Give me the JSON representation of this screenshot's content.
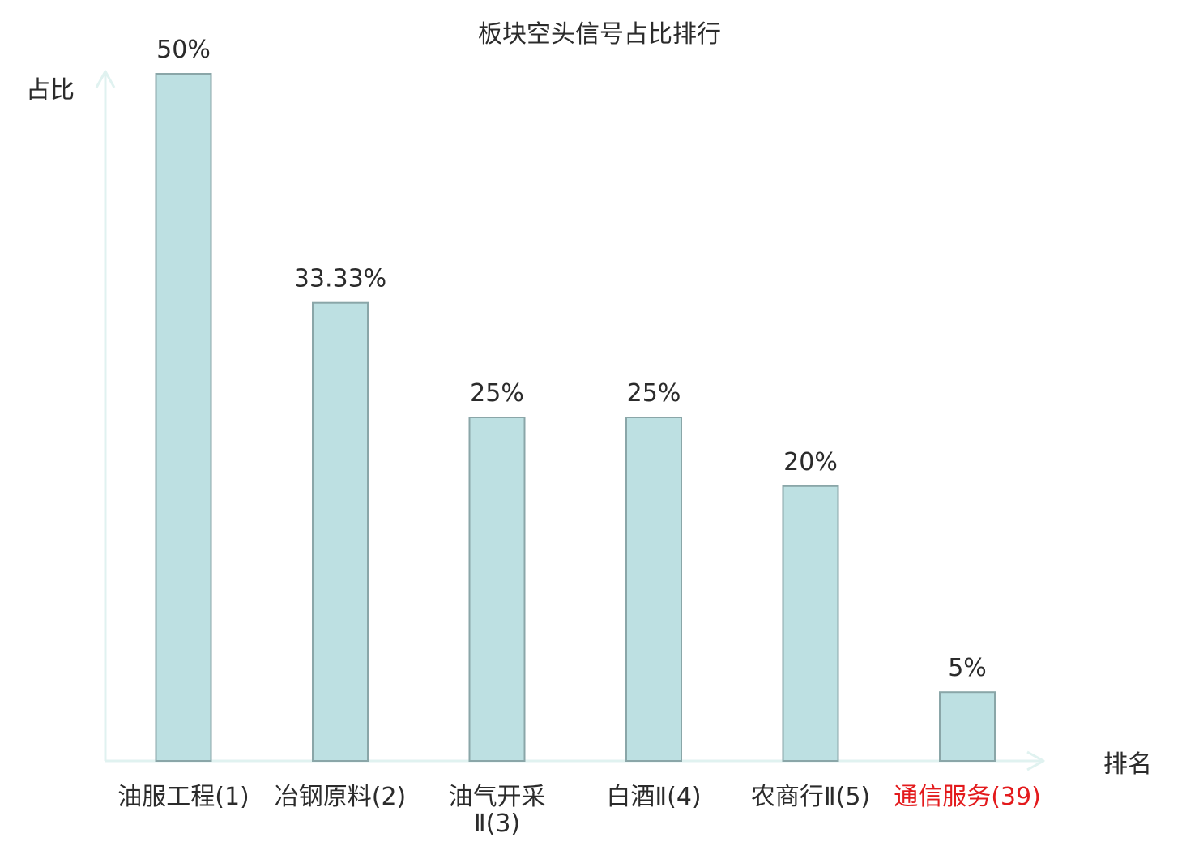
{
  "chart_data": {
    "type": "bar",
    "title": "板块空头信号占比排行",
    "xlabel": "排名",
    "ylabel": "占比",
    "ylim": [
      0,
      50
    ],
    "grid": false,
    "legend": "none",
    "categories": [
      "油服工程(1)",
      "冶钢原料(2)",
      "油气开采Ⅱ(3)",
      "白酒Ⅱ(4)",
      "农商行Ⅱ(5)",
      "通信服务(39)"
    ],
    "category_lines": [
      [
        "油服工程(1)"
      ],
      [
        "冶钢原料(2)"
      ],
      [
        "油气开采",
        "Ⅱ(3)"
      ],
      [
        "白酒Ⅱ(4)"
      ],
      [
        "农商行Ⅱ(5)"
      ],
      [
        "通信服务(39)"
      ]
    ],
    "highlight": [
      false,
      false,
      false,
      false,
      false,
      true
    ],
    "values": [
      50,
      33.33,
      25,
      25,
      20,
      5
    ],
    "value_labels": [
      "50%",
      "33.33%",
      "25%",
      "25%",
      "20%",
      "5%"
    ]
  },
  "colors": {
    "bar_fill": "#bde0e2",
    "bar_stroke": "#8aa6a8",
    "axis": "#e0f2f0",
    "text": "#2b2b2b",
    "highlight_text": "#e31a1c"
  }
}
